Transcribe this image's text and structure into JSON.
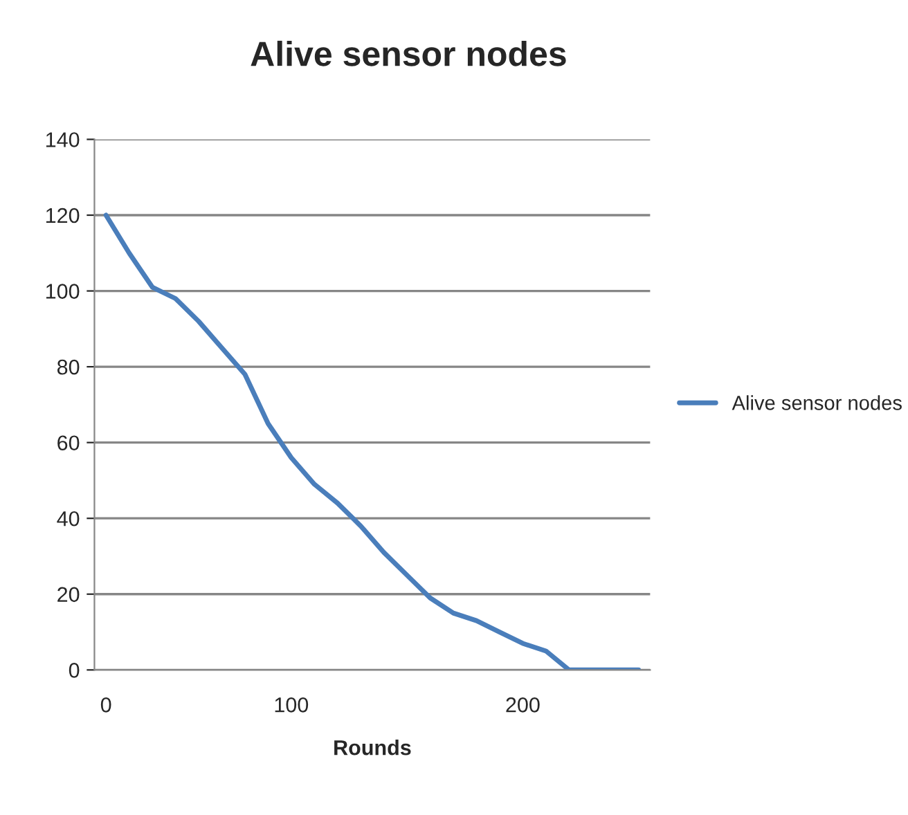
{
  "chart_data": {
    "type": "line",
    "title": "Alive sensor nodes",
    "xlabel": "Rounds",
    "categories": [
      "0",
      null,
      null,
      null,
      null,
      null,
      null,
      null,
      "100",
      null,
      null,
      null,
      null,
      null,
      null,
      null,
      null,
      null,
      "200",
      null,
      null,
      null,
      null,
      null
    ],
    "series": [
      {
        "name": "Alive sensor nodes",
        "color": "#4a7ebb",
        "values": [
          120,
          110,
          101,
          98,
          92,
          85,
          78,
          65,
          56,
          49,
          44,
          38,
          31,
          25,
          19,
          15,
          13,
          10,
          7,
          5,
          0,
          0,
          0,
          0
        ]
      }
    ],
    "ylim": [
      0,
      140
    ],
    "yticks": [
      0,
      20,
      40,
      60,
      80,
      100,
      120,
      140
    ],
    "grid": "y",
    "legend": "right",
    "marker": "none",
    "line_style": "solid"
  }
}
